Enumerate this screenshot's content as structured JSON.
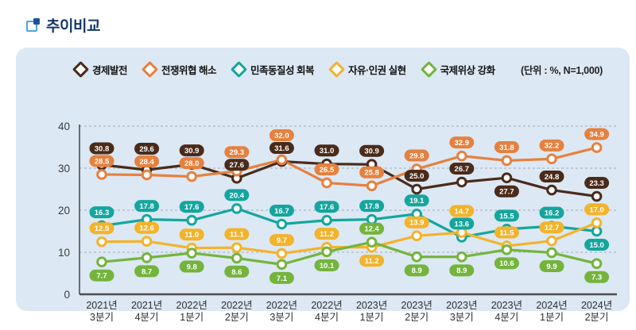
{
  "header": {
    "title": "추이비교"
  },
  "chart_data": {
    "type": "line",
    "title": "추이비교",
    "unit": "(단위 : %, N=1,000)",
    "legend_position": "top",
    "grid": "horizontal-dashed",
    "ylim": [
      0,
      40
    ],
    "yticks": [
      0,
      10,
      20,
      30,
      40
    ],
    "categories": [
      "2021년 3분기",
      "2021년 4분기",
      "2022년 1분기",
      "2022년 2분기",
      "2022년 3분기",
      "2022년 4분기",
      "2023년 1분기",
      "2023년 2분기",
      "2023년 3분기",
      "2023년 4분기",
      "2024년 1분기",
      "2024년 2분기"
    ],
    "series": [
      {
        "name": "경제발전",
        "color": "#4a2b1a",
        "values": [
          30.8,
          29.6,
          30.9,
          27.6,
          31.6,
          31.0,
          30.9,
          25.0,
          26.7,
          27.7,
          24.8,
          23.3
        ],
        "label_side": [
          "a",
          "a",
          "a",
          "a",
          "a",
          "a",
          "a",
          "a",
          "a",
          "b",
          "a",
          "a"
        ]
      },
      {
        "name": "전쟁위협 해소",
        "color": "#e5813f",
        "values": [
          28.5,
          28.4,
          28.0,
          29.3,
          32.0,
          26.5,
          25.8,
          29.8,
          32.9,
          31.8,
          32.2,
          34.9
        ],
        "label_side": [
          "a",
          "a",
          "a",
          "a",
          "a",
          "a",
          "a",
          "a",
          "a",
          "a",
          "a",
          "a"
        ]
      },
      {
        "name": "민족동질성 회복",
        "color": "#14a69e",
        "values": [
          16.3,
          17.8,
          17.6,
          20.4,
          16.7,
          17.6,
          17.8,
          19.1,
          13.6,
          15.5,
          16.2,
          15.0
        ],
        "label_side": [
          "a",
          "a",
          "a",
          "a",
          "a",
          "a",
          "a",
          "a",
          "a",
          "a",
          "a",
          "b"
        ]
      },
      {
        "name": "자유·인권 실현",
        "color": "#f3b32a",
        "values": [
          12.5,
          12.6,
          11.0,
          11.1,
          9.7,
          11.2,
          11.2,
          13.9,
          14.7,
          11.5,
          12.7,
          17.0
        ],
        "label_side": [
          "a",
          "a",
          "a",
          "a",
          "a",
          "a",
          "b",
          "a",
          "a",
          "a",
          "a",
          "a"
        ]
      },
      {
        "name": "국제위상 강화",
        "color": "#74b43c",
        "values": [
          7.7,
          8.7,
          9.8,
          8.6,
          7.1,
          10.1,
          12.4,
          8.9,
          8.9,
          10.6,
          9.9,
          7.3
        ],
        "label_side": [
          "b",
          "b",
          "b",
          "b",
          "b",
          "b",
          "a",
          "b",
          "b",
          "b",
          "b",
          "b"
        ]
      }
    ]
  }
}
